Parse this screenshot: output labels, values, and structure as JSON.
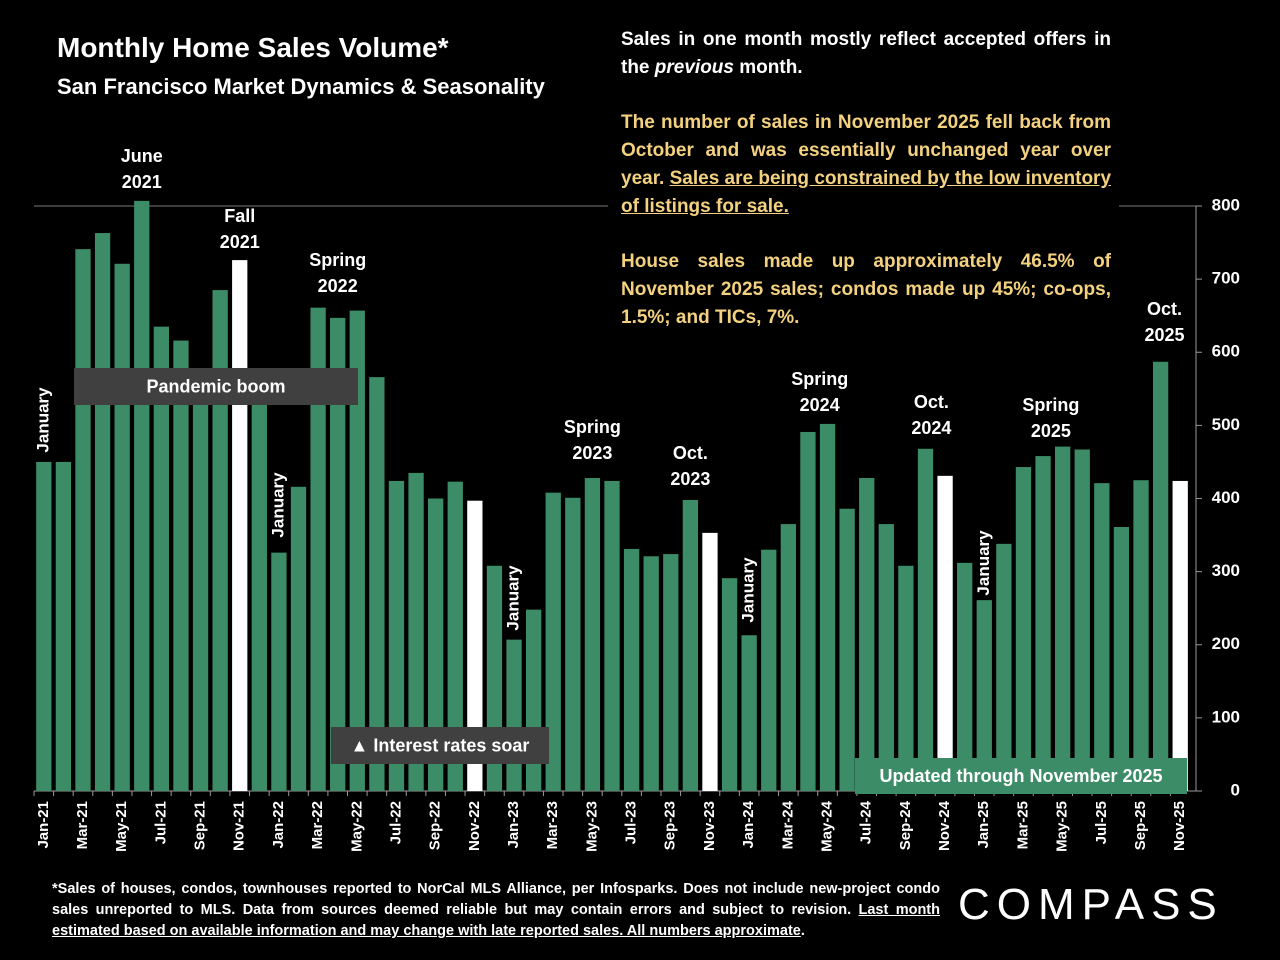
{
  "chart_data": {
    "type": "bar",
    "title": "Monthly Home Sales Volume*",
    "subtitle": "San Francisco Market Dynamics & Seasonality",
    "categories": [
      "Jan-21",
      null,
      "Mar-21",
      null,
      "May-21",
      null,
      "Jul-21",
      null,
      "Sep-21",
      null,
      "Nov-21",
      null,
      "Jan-22",
      null,
      "Mar-22",
      null,
      "May-22",
      null,
      "Jul-22",
      null,
      "Sep-22",
      null,
      "Nov-22",
      null,
      "Jan-23",
      null,
      "Mar-23",
      null,
      "May-23",
      null,
      "Jul-23",
      null,
      "Sep-23",
      null,
      "Nov-23",
      null,
      "Jan-24",
      null,
      "Mar-24",
      null,
      "May-24",
      null,
      "Jul-24",
      null,
      "Sep-24",
      null,
      "Nov-24",
      null,
      "Jan-25",
      null,
      "Mar-25",
      null,
      "May-25",
      null,
      "Jul-25",
      null,
      "Sep-25",
      null,
      "Nov-25"
    ],
    "values": [
      450,
      450,
      741,
      763,
      721,
      807,
      635,
      616,
      560,
      685,
      726,
      530,
      326,
      416,
      661,
      647,
      657,
      566,
      424,
      435,
      400,
      423,
      397,
      308,
      207,
      248,
      408,
      401,
      428,
      424,
      331,
      321,
      324,
      398,
      353,
      291,
      213,
      330,
      365,
      491,
      502,
      386,
      428,
      365,
      308,
      468,
      431,
      312,
      261,
      338,
      443,
      458,
      471,
      467,
      421,
      361,
      425,
      587,
      424
    ],
    "colors": [
      "#3d8c68",
      "#3d8c68",
      "#3d8c68",
      "#3d8c68",
      "#3d8c68",
      "#3d8c68",
      "#3d8c68",
      "#3d8c68",
      "#3d8c68",
      "#3d8c68",
      "#ffffff",
      "#3d8c68",
      "#3d8c68",
      "#3d8c68",
      "#3d8c68",
      "#3d8c68",
      "#3d8c68",
      "#3d8c68",
      "#3d8c68",
      "#3d8c68",
      "#3d8c68",
      "#3d8c68",
      "#ffffff",
      "#3d8c68",
      "#3d8c68",
      "#3d8c68",
      "#3d8c68",
      "#3d8c68",
      "#3d8c68",
      "#3d8c68",
      "#3d8c68",
      "#3d8c68",
      "#3d8c68",
      "#3d8c68",
      "#ffffff",
      "#3d8c68",
      "#3d8c68",
      "#3d8c68",
      "#3d8c68",
      "#3d8c68",
      "#3d8c68",
      "#3d8c68",
      "#3d8c68",
      "#3d8c68",
      "#3d8c68",
      "#3d8c68",
      "#ffffff",
      "#3d8c68",
      "#3d8c68",
      "#3d8c68",
      "#3d8c68",
      "#3d8c68",
      "#3d8c68",
      "#3d8c68",
      "#3d8c68",
      "#3d8c68",
      "#3d8c68",
      "#3d8c68",
      "#ffffff"
    ],
    "ylim": [
      0,
      800
    ],
    "yticks": [
      0,
      100,
      200,
      300,
      400,
      500,
      600,
      700,
      800
    ],
    "y_axis_side": "right",
    "grid": false,
    "annotations": [
      {
        "lines": [
          "June",
          "2021"
        ]
      },
      {
        "lines": [
          "Fall",
          "2021"
        ]
      },
      {
        "lines": [
          "Spring",
          "2022"
        ]
      },
      {
        "lines": [
          "Spring",
          "2023"
        ]
      },
      {
        "lines": [
          "Oct.",
          "2023"
        ]
      },
      {
        "lines": [
          "Spring",
          "2024"
        ]
      },
      {
        "lines": [
          "Oct.",
          "2024"
        ]
      },
      {
        "lines": [
          "Spring",
          "2025"
        ]
      },
      {
        "lines": [
          "Oct.",
          "2025"
        ]
      }
    ],
    "january_labels": [
      "January",
      "January",
      "January",
      "January",
      "January"
    ],
    "boxes": [
      "Pandemic boom",
      "▲ Interest rates soar",
      "Updated through November 2025"
    ],
    "notes": [
      [
        "Sales in one month mostly reflect accepted offers in the ",
        "previous",
        " month."
      ],
      [
        "The number of sales in November 2025 fell back from October and was essentially unchanged year over year. ",
        "Sales are being constrained by the low inventory of listings for sale."
      ],
      [
        "House sales made up approximately 46.5% of November 2025 sales; condos made up 45%; co-ops, 1.5%; and TICs, 7%."
      ]
    ],
    "footnote": [
      "*Sales of houses, condos, townhouses reported to NorCal MLS Alliance, per Infosparks. Does not include new-project condo sales unreported to MLS. Data from sources deemed reliable but may contain errors and subject to revision. ",
      "Last month estimated based on available information and may change with late reported sales. All numbers approximate",
      "."
    ],
    "brand": "COMPASS"
  }
}
